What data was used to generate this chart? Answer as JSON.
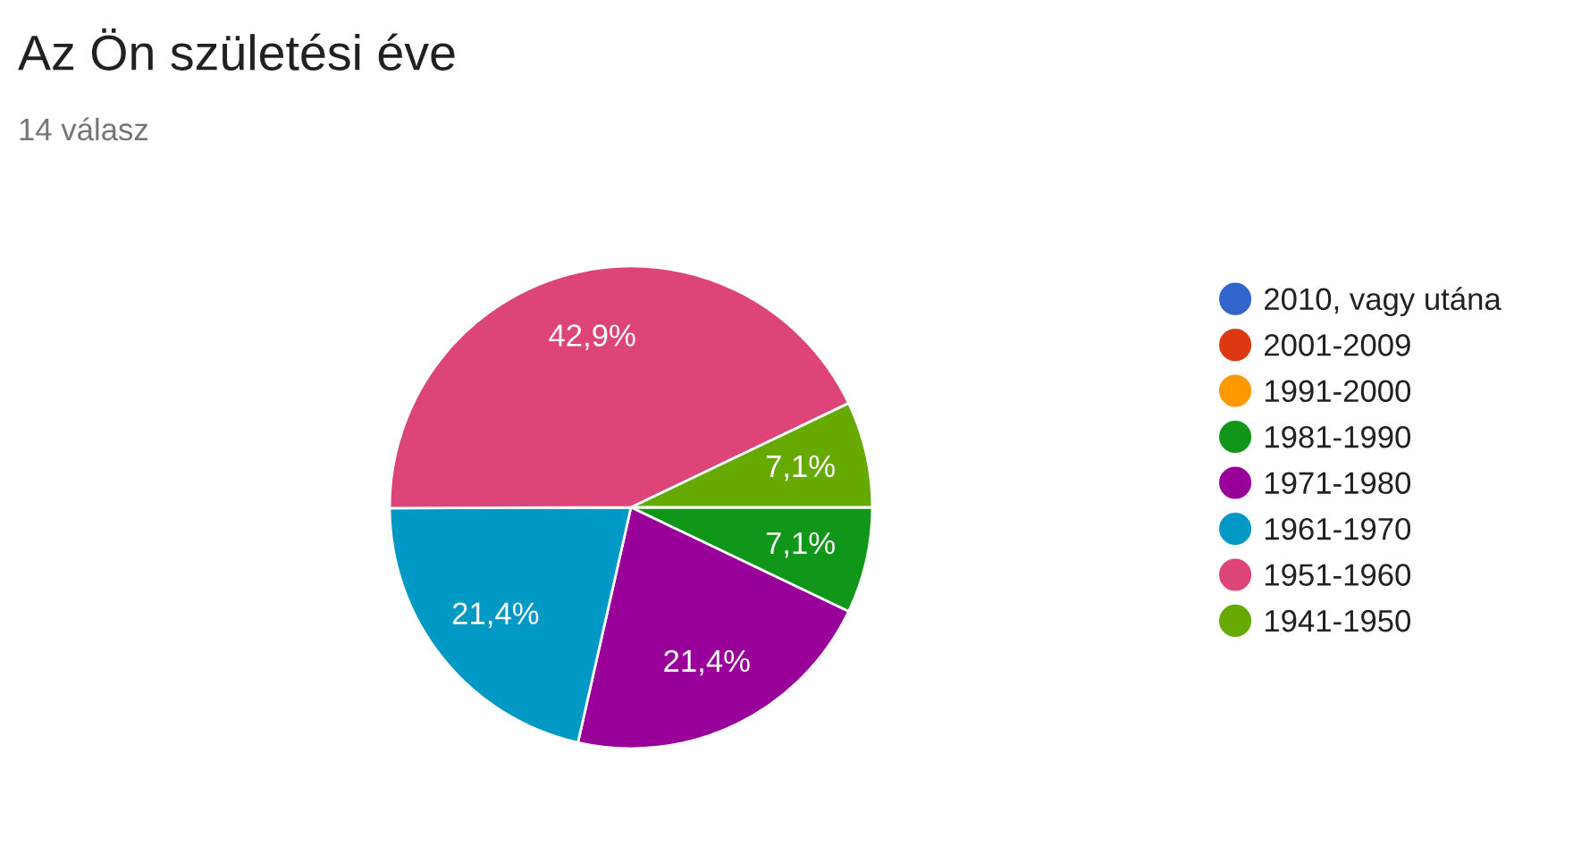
{
  "chart_data": {
    "type": "pie",
    "title": "Az Ön születési éve",
    "subtitle": "14 válasz",
    "categories": [
      "2010, vagy utána",
      "2001-2009",
      "1991-2000",
      "1981-1990",
      "1971-1980",
      "1961-1970",
      "1951-1960",
      "1941-1950"
    ],
    "values": [
      0,
      0,
      0,
      7.1,
      21.4,
      21.4,
      42.9,
      7.1
    ],
    "colors": [
      "#3366cc",
      "#dc3912",
      "#ff9900",
      "#109618",
      "#990099",
      "#0099c6",
      "#dd4477",
      "#66aa00"
    ],
    "value_labels": [
      null,
      null,
      null,
      "7,1%",
      "21,4%",
      "21,4%",
      "42,9%",
      "7,1%"
    ],
    "legend": "right"
  }
}
